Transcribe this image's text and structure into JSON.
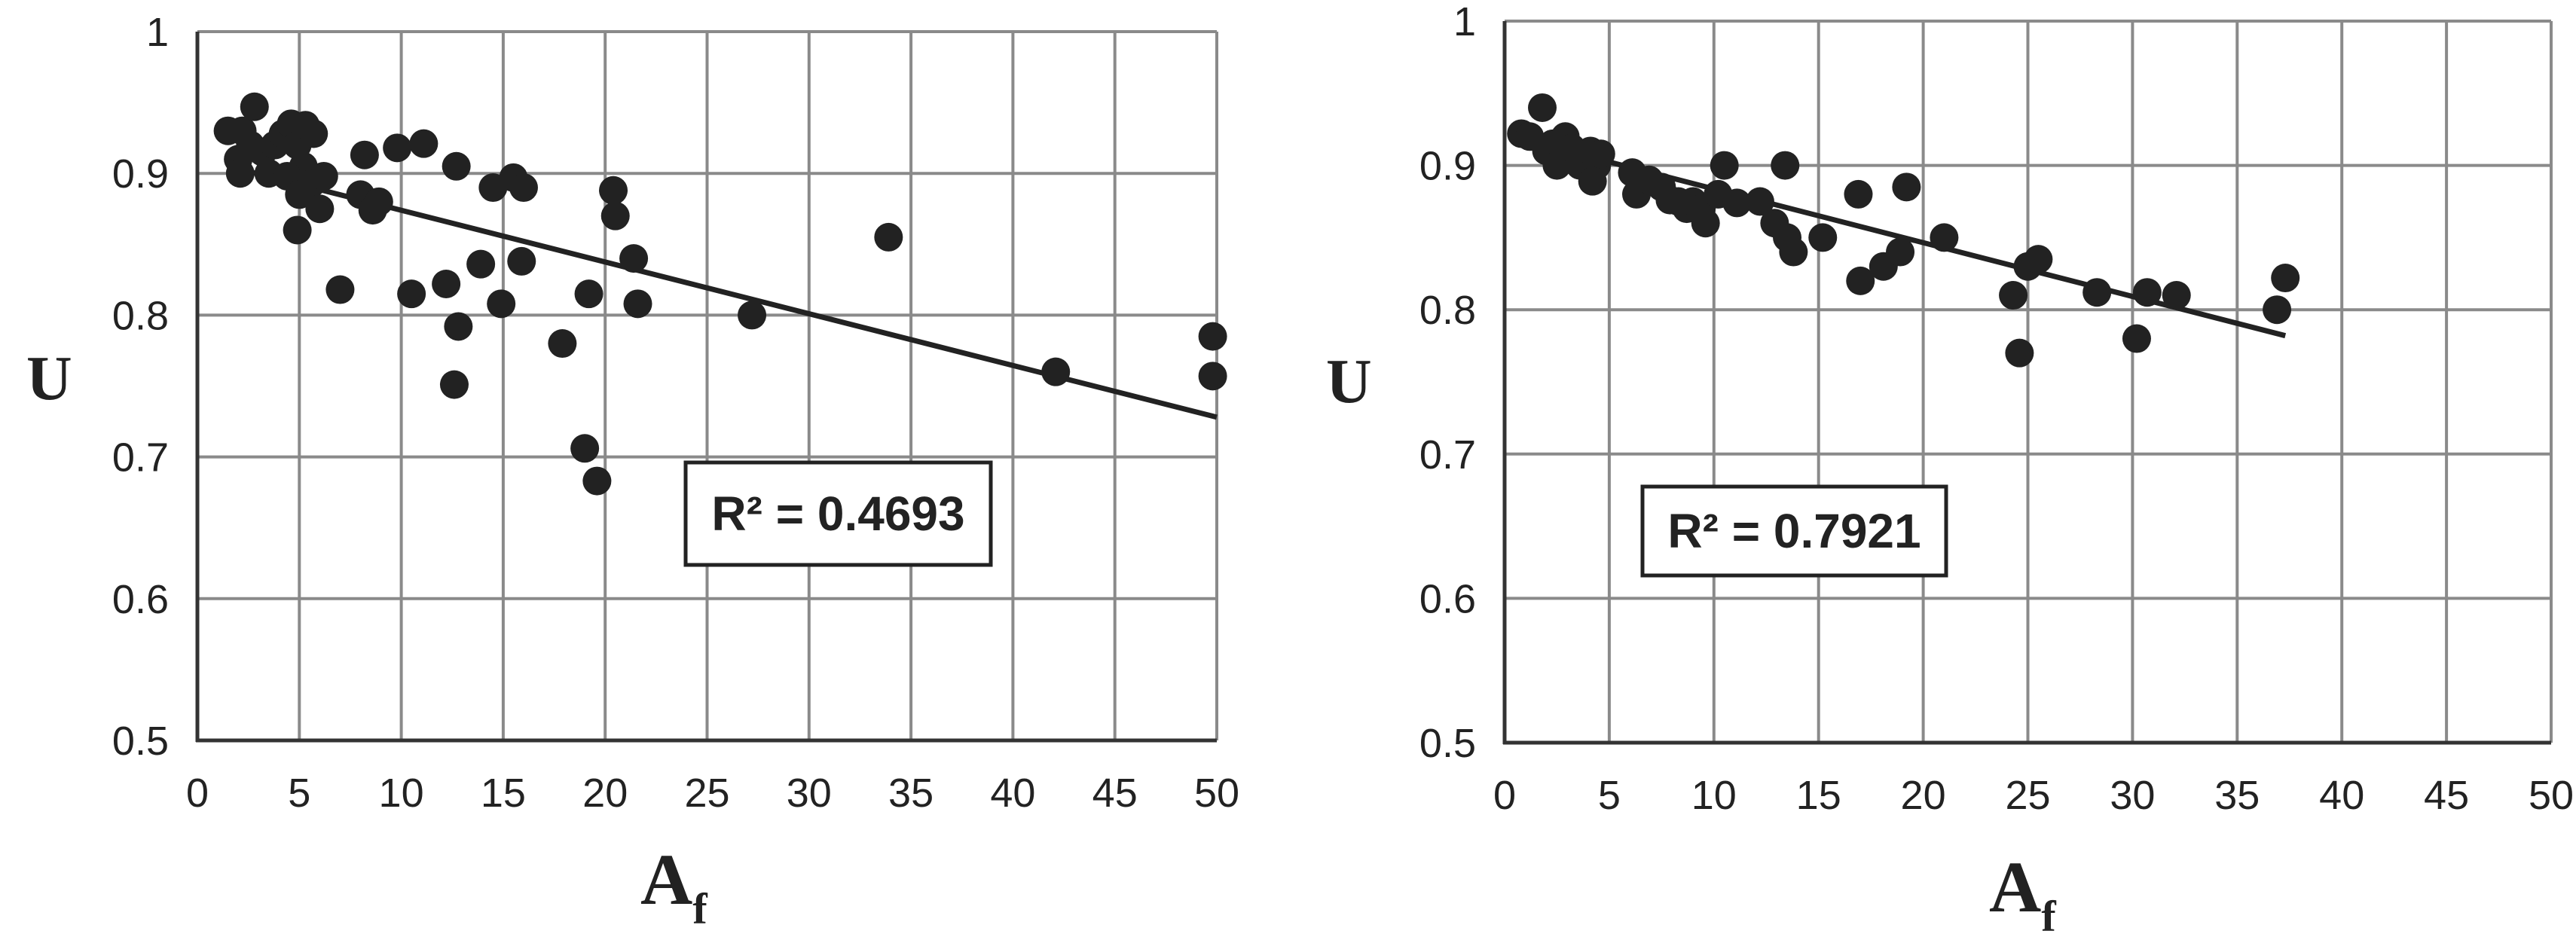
{
  "chart_data": [
    {
      "type": "scatter",
      "xlabel": "A",
      "xlabel_sub": "f",
      "ylabel": "U",
      "xlim": [
        0,
        50
      ],
      "ylim": [
        0.5,
        1
      ],
      "xticks": [
        "0",
        "5",
        "10",
        "15",
        "20",
        "25",
        "30",
        "35",
        "40",
        "45",
        "50"
      ],
      "yticks": [
        "0.5",
        "0.6",
        "0.7",
        "0.8",
        "0.9",
        "1"
      ],
      "grid": true,
      "annotation": "R² = 0.4693",
      "trendline": {
        "x": [
          1.5,
          50
        ],
        "y": [
          0.905,
          0.728
        ]
      },
      "points": [
        [
          1.5,
          0.93
        ],
        [
          2.2,
          0.93
        ],
        [
          2.8,
          0.947
        ],
        [
          2,
          0.91
        ],
        [
          2.1,
          0.9
        ],
        [
          2.6,
          0.92
        ],
        [
          3.2,
          0.915
        ],
        [
          3.5,
          0.9
        ],
        [
          3.8,
          0.92
        ],
        [
          4.2,
          0.928
        ],
        [
          4.6,
          0.935
        ],
        [
          4.9,
          0.92
        ],
        [
          5.3,
          0.934
        ],
        [
          5.7,
          0.928
        ],
        [
          5.2,
          0.905
        ],
        [
          4.4,
          0.898
        ],
        [
          5.0,
          0.885
        ],
        [
          5.6,
          0.893
        ],
        [
          6.0,
          0.875
        ],
        [
          6.2,
          0.898
        ],
        [
          4.9,
          0.86
        ],
        [
          7.0,
          0.818
        ],
        [
          8.0,
          0.885
        ],
        [
          8.2,
          0.913
        ],
        [
          8.6,
          0.874
        ],
        [
          8.9,
          0.88
        ],
        [
          9.8,
          0.918
        ],
        [
          10.5,
          0.815
        ],
        [
          11.1,
          0.921
        ],
        [
          12.2,
          0.822
        ],
        [
          12.7,
          0.905
        ],
        [
          12.8,
          0.792
        ],
        [
          12.6,
          0.751
        ],
        [
          13.9,
          0.836
        ],
        [
          14.5,
          0.89
        ],
        [
          14.9,
          0.808
        ],
        [
          15.5,
          0.897
        ],
        [
          15.9,
          0.838
        ],
        [
          16.0,
          0.89
        ],
        [
          17.9,
          0.78
        ],
        [
          19.0,
          0.706
        ],
        [
          19.2,
          0.815
        ],
        [
          19.6,
          0.683
        ],
        [
          20.4,
          0.888
        ],
        [
          20.5,
          0.87
        ],
        [
          21.4,
          0.84
        ],
        [
          21.6,
          0.808
        ],
        [
          27.2,
          0.8
        ],
        [
          33.9,
          0.855
        ],
        [
          42.1,
          0.76
        ],
        [
          49.8,
          0.785
        ],
        [
          49.8,
          0.757
        ]
      ]
    },
    {
      "type": "scatter",
      "xlabel": "A",
      "xlabel_sub": "f",
      "ylabel": "U",
      "xlim": [
        0,
        50
      ],
      "ylim": [
        0.5,
        1
      ],
      "xticks": [
        "0",
        "5",
        "10",
        "15",
        "20",
        "25",
        "30",
        "35",
        "40",
        "45",
        "50"
      ],
      "yticks": [
        "0.5",
        "0.6",
        "0.7",
        "0.8",
        "0.9",
        "1"
      ],
      "grid": true,
      "annotation": "R² = 0.7921",
      "trendline": {
        "x": [
          0.8,
          37.3
        ],
        "y": [
          0.918,
          0.782
        ]
      },
      "points": [
        [
          0.8,
          0.922
        ],
        [
          1.2,
          0.92
        ],
        [
          1.8,
          0.94
        ],
        [
          2.0,
          0.91
        ],
        [
          2.3,
          0.915
        ],
        [
          2.5,
          0.9
        ],
        [
          2.9,
          0.92
        ],
        [
          3.2,
          0.912
        ],
        [
          3.6,
          0.9
        ],
        [
          3.8,
          0.905
        ],
        [
          4.1,
          0.91
        ],
        [
          4.4,
          0.9
        ],
        [
          4.2,
          0.889
        ],
        [
          4.6,
          0.908
        ],
        [
          6.1,
          0.895
        ],
        [
          6.3,
          0.88
        ],
        [
          6.9,
          0.89
        ],
        [
          7.5,
          0.885
        ],
        [
          7.9,
          0.876
        ],
        [
          8.3,
          0.875
        ],
        [
          8.7,
          0.87
        ],
        [
          9.0,
          0.875
        ],
        [
          9.4,
          0.87
        ],
        [
          9.6,
          0.86
        ],
        [
          10.2,
          0.88
        ],
        [
          10.5,
          0.9
        ],
        [
          11.1,
          0.874
        ],
        [
          12.2,
          0.875
        ],
        [
          12.9,
          0.86
        ],
        [
          13.4,
          0.9
        ],
        [
          13.5,
          0.85
        ],
        [
          13.8,
          0.84
        ],
        [
          15.2,
          0.85
        ],
        [
          16.9,
          0.88
        ],
        [
          17.0,
          0.82
        ],
        [
          18.1,
          0.83
        ],
        [
          18.9,
          0.84
        ],
        [
          19.2,
          0.885
        ],
        [
          21.0,
          0.85
        ],
        [
          24.3,
          0.81
        ],
        [
          24.6,
          0.77
        ],
        [
          25.0,
          0.83
        ],
        [
          25.5,
          0.835
        ],
        [
          28.3,
          0.812
        ],
        [
          30.2,
          0.78
        ],
        [
          30.7,
          0.812
        ],
        [
          32.1,
          0.81
        ],
        [
          36.9,
          0.8
        ],
        [
          37.3,
          0.822
        ]
      ]
    }
  ]
}
